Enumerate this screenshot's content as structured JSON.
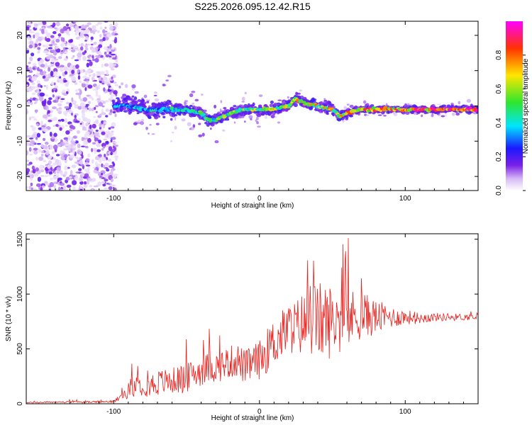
{
  "title": "S225.2026.095.12.42.R15",
  "colors": {
    "background": "#ffffff",
    "snr_line": "#e8201c",
    "spectrogram_palette": [
      "#ffffff",
      "#d6b8f5",
      "#7a1fe8",
      "#1a1aff",
      "#00e5ff",
      "#2ee62e",
      "#ffe600",
      "#ff3300",
      "#ff00ff"
    ]
  },
  "chart_data": [
    {
      "type": "heatmap",
      "xlabel": "Height of straight line (km)",
      "ylabel": "Frequency (Hz)",
      "xlim": [
        -160,
        150
      ],
      "ylim": [
        -24,
        24
      ],
      "x_ticks": [
        -100,
        0,
        100
      ],
      "y_ticks": [
        -20,
        -10,
        0,
        10,
        20
      ],
      "colorbar": {
        "label": "Normalized spectral amplitude",
        "range": [
          0,
          1
        ],
        "ticks": [
          "0.0",
          "0.2",
          "0.4",
          "0.6",
          "0.8"
        ]
      },
      "ridge": {
        "x": [
          -100,
          -90,
          -80,
          -70,
          -60,
          -50,
          -40,
          -35,
          -30,
          -25,
          -20,
          -10,
          0,
          10,
          20,
          25,
          30,
          40,
          50,
          55,
          60,
          70,
          80,
          90,
          100,
          110,
          120,
          130,
          140,
          150
        ],
        "frequency": [
          0,
          0,
          -1,
          -1,
          -1,
          -1,
          -2,
          -4,
          -4,
          -3,
          -2,
          -1,
          -1,
          -1,
          0,
          2,
          1,
          0,
          -1,
          -3,
          -2,
          -1,
          -1,
          -1,
          -1,
          -1,
          -1,
          -1,
          -1,
          -1
        ],
        "amplitude": [
          0.35,
          0.4,
          0.4,
          0.45,
          0.45,
          0.45,
          0.5,
          0.5,
          0.55,
          0.6,
          0.6,
          0.6,
          0.65,
          0.65,
          0.7,
          0.75,
          0.75,
          0.7,
          0.7,
          0.7,
          0.75,
          0.8,
          0.85,
          0.85,
          0.85,
          0.9,
          0.9,
          0.9,
          0.9,
          0.9
        ]
      },
      "noise_region_x": [
        -160,
        -100
      ]
    },
    {
      "type": "line",
      "xlabel": "Height of straight line (km)",
      "ylabel": "SNR (10 * v/v)",
      "xlim": [
        -160,
        150
      ],
      "ylim": [
        0,
        1550
      ],
      "x_ticks": [
        -100,
        0,
        100
      ],
      "y_ticks": [
        0,
        500,
        1000,
        1500
      ],
      "series": [
        {
          "x": [
            -160,
            -140,
            -120,
            -100,
            -95,
            -90,
            -85,
            -80,
            -75,
            -70,
            -65,
            -60,
            -55,
            -50,
            -45,
            -40,
            -35,
            -30,
            -25,
            -20,
            -15,
            -10,
            -5,
            0,
            5,
            10,
            15,
            20,
            25,
            30,
            35,
            40,
            45,
            50,
            55,
            60,
            65,
            70,
            75,
            80,
            90,
            100,
            110,
            120,
            130,
            140,
            150
          ],
          "y": [
            10,
            15,
            15,
            20,
            60,
            120,
            160,
            180,
            170,
            190,
            200,
            210,
            220,
            230,
            280,
            300,
            330,
            330,
            360,
            380,
            400,
            330,
            370,
            400,
            480,
            560,
            620,
            690,
            700,
            730,
            770,
            760,
            740,
            760,
            760,
            780,
            790,
            810,
            800,
            790,
            790,
            790,
            780,
            790,
            790,
            790,
            790
          ],
          "spread": [
            5,
            8,
            8,
            10,
            30,
            70,
            90,
            110,
            110,
            120,
            120,
            120,
            130,
            130,
            140,
            140,
            140,
            140,
            150,
            150,
            160,
            160,
            160,
            180,
            200,
            220,
            230,
            240,
            250,
            300,
            340,
            360,
            360,
            330,
            300,
            280,
            250,
            220,
            190,
            160,
            100,
            70,
            50,
            40,
            35,
            30,
            30
          ]
        }
      ]
    }
  ]
}
